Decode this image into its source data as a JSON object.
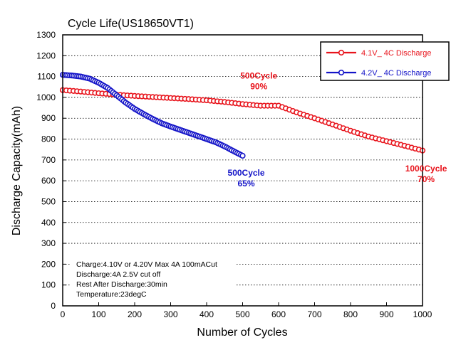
{
  "chart_data": {
    "type": "scatter",
    "title": "Cycle Life(US18650VT1)",
    "xlabel": "Number of Cycles",
    "ylabel": "Discharge Capacity(mAh)",
    "xlim": [
      0,
      1000
    ],
    "ylim": [
      0,
      1300
    ],
    "xticks": [
      0,
      100,
      200,
      300,
      400,
      500,
      600,
      700,
      800,
      900,
      1000
    ],
    "yticks": [
      0,
      100,
      200,
      300,
      400,
      500,
      600,
      700,
      800,
      900,
      1000,
      1100,
      1200,
      1300
    ],
    "grid": "horizontal dotted",
    "legend_position": "top-right",
    "series": [
      {
        "name": "4.1V_ 4C Discharge",
        "color": "#e8141c",
        "marker": "circle",
        "x": [
          0,
          50,
          100,
          150,
          200,
          250,
          300,
          350,
          400,
          450,
          500,
          550,
          600,
          650,
          700,
          750,
          800,
          850,
          900,
          950,
          1000
        ],
        "y": [
          1035,
          1028,
          1020,
          1013,
          1007,
          1002,
          997,
          992,
          986,
          978,
          968,
          960,
          960,
          928,
          900,
          870,
          840,
          812,
          790,
          768,
          745
        ]
      },
      {
        "name": "4.2V_ 4C Discharge",
        "color": "#1414c8",
        "marker": "circle",
        "x": [
          0,
          25,
          50,
          75,
          100,
          125,
          150,
          175,
          200,
          225,
          250,
          275,
          300,
          325,
          350,
          375,
          400,
          425,
          450,
          475,
          500
        ],
        "y": [
          1108,
          1105,
          1100,
          1090,
          1070,
          1045,
          1010,
          975,
          945,
          920,
          897,
          876,
          860,
          845,
          830,
          815,
          800,
          785,
          765,
          742,
          720
        ]
      }
    ],
    "annotations": [
      {
        "text": "500Cycle",
        "sub": "90%",
        "color": "#e8141c",
        "x": 545,
        "y": 1090
      },
      {
        "text": "500Cycle",
        "sub": "65%",
        "color": "#1414c8",
        "x": 510,
        "y": 625
      },
      {
        "text": "1000Cycle",
        "sub": "70%",
        "color": "#e8141c",
        "x": 1010,
        "y": 645
      }
    ],
    "notes": [
      "Charge:4.10V or 4.20V Max 4A 100mACut",
      "Discharge:4A 2.5V cut off",
      "Rest After Discharge:30min",
      "Temperature:23degC"
    ]
  }
}
